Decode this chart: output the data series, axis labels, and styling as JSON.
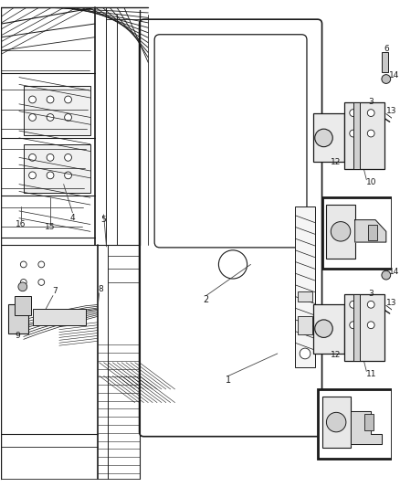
{
  "bg_color": "#ffffff",
  "lc": "#1a1a1a",
  "figsize": [
    4.38,
    5.33
  ],
  "dpi": 100,
  "fs": 6.5,
  "label_color": "#1a1a1a"
}
